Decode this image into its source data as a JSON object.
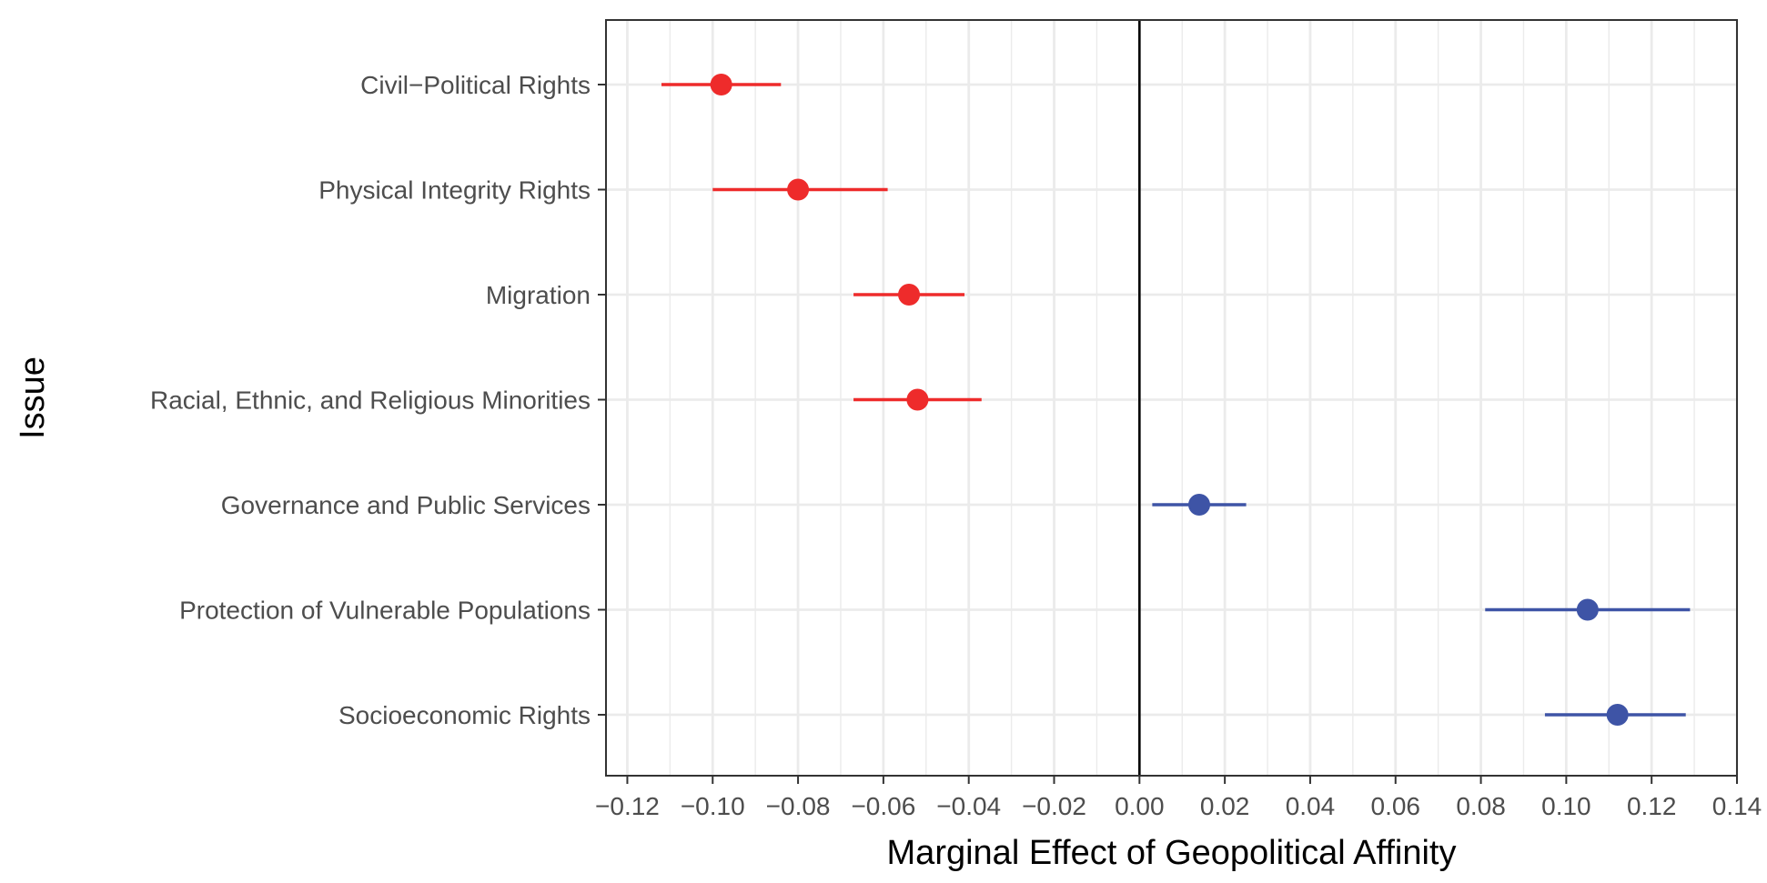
{
  "chart_data": {
    "type": "scatter",
    "subtype": "coefficient-plot",
    "title": "",
    "xlabel": "Marginal Effect of Geopolitical Affinity",
    "ylabel": "Issue",
    "xlim": [
      -0.125,
      0.14
    ],
    "x_ticks": [
      -0.12,
      -0.1,
      -0.08,
      -0.06,
      -0.04,
      -0.02,
      0.0,
      0.02,
      0.04,
      0.06,
      0.08,
      0.1,
      0.12,
      0.14
    ],
    "x_tick_labels": [
      "−0.12",
      "−0.10",
      "−0.08",
      "−0.06",
      "−0.04",
      "−0.02",
      "0.00",
      "0.02",
      "0.04",
      "0.06",
      "0.08",
      "0.10",
      "0.12",
      "0.14"
    ],
    "reference_line_x": 0,
    "grid": true,
    "legend": "none",
    "colors": {
      "negative": "#ee2b2b",
      "positive": "#3e54a6",
      "grid": "#ebebeb",
      "panel_border": "#333333",
      "reference_line": "#000000",
      "tick_text": "#4d4d4d"
    },
    "points": [
      {
        "label": "Civil−Political Rights",
        "estimate": -0.098,
        "lower": -0.112,
        "upper": -0.084,
        "group": "negative"
      },
      {
        "label": "Physical Integrity Rights",
        "estimate": -0.08,
        "lower": -0.1,
        "upper": -0.059,
        "group": "negative"
      },
      {
        "label": "Migration",
        "estimate": -0.054,
        "lower": -0.067,
        "upper": -0.041,
        "group": "negative"
      },
      {
        "label": "Racial, Ethnic, and Religious Minorities",
        "estimate": -0.052,
        "lower": -0.067,
        "upper": -0.037,
        "group": "negative"
      },
      {
        "label": "Governance and Public Services",
        "estimate": 0.014,
        "lower": 0.003,
        "upper": 0.025,
        "group": "positive"
      },
      {
        "label": "Protection of Vulnerable Populations",
        "estimate": 0.105,
        "lower": 0.081,
        "upper": 0.129,
        "group": "positive"
      },
      {
        "label": "Socioeconomic Rights",
        "estimate": 0.112,
        "lower": 0.095,
        "upper": 0.128,
        "group": "positive"
      }
    ]
  }
}
